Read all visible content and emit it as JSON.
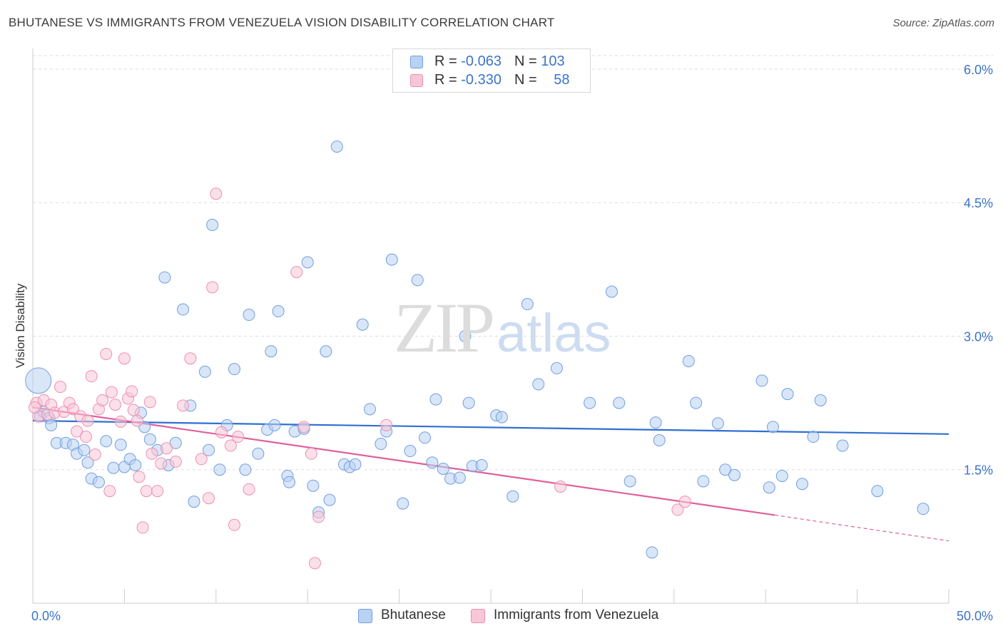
{
  "title": "BHUTANESE VS IMMIGRANTS FROM VENEZUELA VISION DISABILITY CORRELATION CHART",
  "source": "Source: ZipAtlas.com",
  "watermark": {
    "zip": "ZIP",
    "atlas": "atlas"
  },
  "legend": {
    "rows": [
      {
        "r_label": "R = ",
        "r_value": "-0.063",
        "n_label": "N = ",
        "n_value": "103"
      },
      {
        "r_label": "R = ",
        "r_value": "-0.330",
        "n_label": "N = ",
        "n_value": "58"
      }
    ]
  },
  "chart_data": {
    "type": "scatter",
    "ylabel": "Vision Disability",
    "xlim": [
      0,
      50
    ],
    "ylim": [
      0,
      6.2
    ],
    "x_tick_labels": [
      "0.0%",
      "50.0%"
    ],
    "y_ticks": [
      1.5,
      3.0,
      4.5,
      6.0
    ],
    "y_tick_labels": [
      "1.5%",
      "3.0%",
      "4.5%",
      "6.0%"
    ],
    "grid": "horizontal dashed",
    "series": [
      {
        "name": "Bhutanese",
        "color": "#6f9fdf",
        "fill": "#b9d2f3",
        "trend": {
          "x": [
            0,
            50
          ],
          "y": [
            2.05,
            1.9
          ]
        },
        "points": [
          [
            0.3,
            2.5
          ],
          [
            0.4,
            2.1
          ],
          [
            0.6,
            2.15
          ],
          [
            0.9,
            2.08
          ],
          [
            1.0,
            2.0
          ],
          [
            1.3,
            1.8
          ],
          [
            1.8,
            1.8
          ],
          [
            2.2,
            1.78
          ],
          [
            2.4,
            1.68
          ],
          [
            2.8,
            1.72
          ],
          [
            3.0,
            1.58
          ],
          [
            3.2,
            1.4
          ],
          [
            3.6,
            1.36
          ],
          [
            4.0,
            1.82
          ],
          [
            4.4,
            1.52
          ],
          [
            4.8,
            1.78
          ],
          [
            5.0,
            1.53
          ],
          [
            5.3,
            1.62
          ],
          [
            5.6,
            1.55
          ],
          [
            5.9,
            2.14
          ],
          [
            6.1,
            1.98
          ],
          [
            6.4,
            1.84
          ],
          [
            6.8,
            1.72
          ],
          [
            7.2,
            3.66
          ],
          [
            7.4,
            1.55
          ],
          [
            7.8,
            1.8
          ],
          [
            8.2,
            3.3
          ],
          [
            8.6,
            2.22
          ],
          [
            8.8,
            1.14
          ],
          [
            9.4,
            2.6
          ],
          [
            9.6,
            1.72
          ],
          [
            9.8,
            4.25
          ],
          [
            10.2,
            1.5
          ],
          [
            10.6,
            2.0
          ],
          [
            11.0,
            2.63
          ],
          [
            11.6,
            1.5
          ],
          [
            11.8,
            3.24
          ],
          [
            12.3,
            1.68
          ],
          [
            12.8,
            1.95
          ],
          [
            13.0,
            2.83
          ],
          [
            13.2,
            2.0
          ],
          [
            13.4,
            3.28
          ],
          [
            13.9,
            1.43
          ],
          [
            14.0,
            1.36
          ],
          [
            14.3,
            1.93
          ],
          [
            14.8,
            1.96
          ],
          [
            15.0,
            3.83
          ],
          [
            15.3,
            1.32
          ],
          [
            15.6,
            1.02
          ],
          [
            16.0,
            2.83
          ],
          [
            16.2,
            1.16
          ],
          [
            16.6,
            5.13
          ],
          [
            17.0,
            1.56
          ],
          [
            17.3,
            1.53
          ],
          [
            17.6,
            1.56
          ],
          [
            18.0,
            3.13
          ],
          [
            18.4,
            2.18
          ],
          [
            19.0,
            1.79
          ],
          [
            19.3,
            1.93
          ],
          [
            19.6,
            3.86
          ],
          [
            20.2,
            1.12
          ],
          [
            20.6,
            1.71
          ],
          [
            21.0,
            3.63
          ],
          [
            21.4,
            1.86
          ],
          [
            21.8,
            1.58
          ],
          [
            22.0,
            2.29
          ],
          [
            22.4,
            1.51
          ],
          [
            22.8,
            1.4
          ],
          [
            23.3,
            1.41
          ],
          [
            23.6,
            3.0
          ],
          [
            23.8,
            2.25
          ],
          [
            24.0,
            1.54
          ],
          [
            24.5,
            1.55
          ],
          [
            25.3,
            2.11
          ],
          [
            25.6,
            2.09
          ],
          [
            26.2,
            1.2
          ],
          [
            27.0,
            3.36
          ],
          [
            27.6,
            2.46
          ],
          [
            28.6,
            2.64
          ],
          [
            30.4,
            2.25
          ],
          [
            31.6,
            3.5
          ],
          [
            32.0,
            2.25
          ],
          [
            32.6,
            1.37
          ],
          [
            33.8,
            0.57
          ],
          [
            34.0,
            2.03
          ],
          [
            34.2,
            1.83
          ],
          [
            35.8,
            2.72
          ],
          [
            36.2,
            2.25
          ],
          [
            36.6,
            1.37
          ],
          [
            37.4,
            2.02
          ],
          [
            37.8,
            1.5
          ],
          [
            38.3,
            1.44
          ],
          [
            39.8,
            2.5
          ],
          [
            40.4,
            1.98
          ],
          [
            40.9,
            1.43
          ],
          [
            41.2,
            2.35
          ],
          [
            42.0,
            1.34
          ],
          [
            42.6,
            1.87
          ],
          [
            43.0,
            2.28
          ],
          [
            44.2,
            1.77
          ],
          [
            46.1,
            1.26
          ],
          [
            48.6,
            1.06
          ],
          [
            40.2,
            1.3
          ]
        ]
      },
      {
        "name": "Immigrants from Venezuela",
        "color": "#ee8fb0",
        "fill": "#f7c6d7",
        "trend": {
          "x": [
            0,
            40.5
          ],
          "y": [
            2.2,
            0.99
          ]
        },
        "trend_dashed": {
          "x": [
            40.5,
            50
          ],
          "y": [
            0.99,
            0.7
          ]
        },
        "points": [
          [
            0.2,
            2.25
          ],
          [
            0.3,
            2.1
          ],
          [
            0.6,
            2.28
          ],
          [
            0.8,
            2.12
          ],
          [
            1.0,
            2.23
          ],
          [
            1.2,
            2.14
          ],
          [
            1.5,
            2.43
          ],
          [
            1.7,
            2.15
          ],
          [
            2.0,
            2.25
          ],
          [
            2.2,
            2.18
          ],
          [
            2.4,
            1.93
          ],
          [
            2.6,
            2.1
          ],
          [
            2.9,
            1.87
          ],
          [
            3.0,
            2.05
          ],
          [
            3.2,
            2.55
          ],
          [
            3.4,
            1.67
          ],
          [
            3.6,
            2.18
          ],
          [
            3.8,
            2.28
          ],
          [
            4.0,
            2.8
          ],
          [
            4.2,
            1.26
          ],
          [
            4.3,
            2.37
          ],
          [
            4.5,
            2.23
          ],
          [
            4.8,
            2.04
          ],
          [
            5.0,
            2.75
          ],
          [
            5.2,
            2.3
          ],
          [
            5.4,
            2.38
          ],
          [
            5.5,
            2.17
          ],
          [
            5.7,
            2.05
          ],
          [
            5.8,
            1.42
          ],
          [
            6.0,
            0.85
          ],
          [
            6.2,
            1.26
          ],
          [
            6.4,
            2.26
          ],
          [
            6.5,
            1.68
          ],
          [
            6.8,
            1.26
          ],
          [
            7.0,
            1.57
          ],
          [
            7.3,
            1.74
          ],
          [
            7.8,
            1.59
          ],
          [
            8.2,
            2.22
          ],
          [
            8.6,
            2.75
          ],
          [
            9.2,
            1.62
          ],
          [
            9.6,
            1.18
          ],
          [
            9.8,
            3.55
          ],
          [
            10.0,
            4.6
          ],
          [
            10.3,
            1.92
          ],
          [
            10.8,
            1.77
          ],
          [
            11.0,
            0.88
          ],
          [
            11.2,
            1.87
          ],
          [
            11.8,
            1.28
          ],
          [
            14.4,
            3.72
          ],
          [
            14.8,
            1.98
          ],
          [
            15.2,
            1.68
          ],
          [
            15.4,
            0.45
          ],
          [
            15.6,
            0.97
          ],
          [
            19.3,
            2.0
          ],
          [
            28.8,
            1.31
          ],
          [
            35.2,
            1.05
          ],
          [
            35.6,
            1.14
          ],
          [
            0.1,
            2.2
          ]
        ]
      }
    ]
  }
}
